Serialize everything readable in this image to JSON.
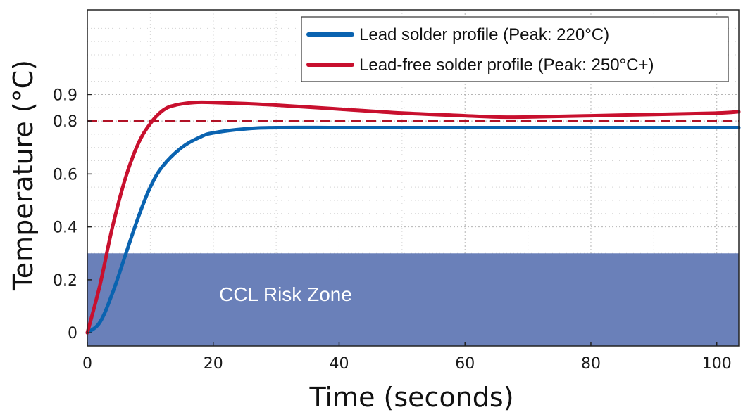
{
  "chart_data": {
    "type": "line",
    "xlabel": "Time (seconds)",
    "ylabel": "Temperature (°C)",
    "xlim": [
      0,
      103.5
    ],
    "ylim": [
      -0.05,
      1.22
    ],
    "xticks": [
      0,
      20,
      40,
      60,
      80,
      100
    ],
    "yticks": [
      0,
      0.2,
      0.4,
      0.6,
      0.8,
      0.9
    ],
    "ytick_labels": [
      "0",
      "0.2",
      "0.4",
      "0.6",
      "0.8",
      "0.9"
    ],
    "grid": true,
    "legend_position": "top-right",
    "series": [
      {
        "name": "Lead solder profile (Peak: 220°C)",
        "color": "#0a63b0",
        "x": [
          0,
          2,
          4,
          6,
          8,
          10,
          12,
          15,
          18,
          20,
          25,
          30,
          40,
          50,
          60,
          70,
          80,
          90,
          100,
          103.5
        ],
        "y": [
          0,
          0.04,
          0.15,
          0.29,
          0.43,
          0.55,
          0.63,
          0.7,
          0.74,
          0.755,
          0.77,
          0.775,
          0.775,
          0.775,
          0.775,
          0.775,
          0.775,
          0.775,
          0.775,
          0.775
        ]
      },
      {
        "name": "Lead-free solder profile (Peak: 250°C+)",
        "color": "#c8102e",
        "x": [
          0,
          2,
          4,
          6,
          8,
          10,
          12,
          14,
          17,
          20,
          25,
          30,
          40,
          50,
          60,
          65,
          70,
          80,
          90,
          100,
          103.5
        ],
        "y": [
          0,
          0.18,
          0.4,
          0.58,
          0.71,
          0.79,
          0.84,
          0.86,
          0.87,
          0.87,
          0.866,
          0.86,
          0.845,
          0.83,
          0.82,
          0.815,
          0.815,
          0.82,
          0.825,
          0.83,
          0.835
        ]
      }
    ],
    "reference_line": {
      "y": 0.8,
      "color": "#b11226",
      "style": "dashed"
    },
    "shaded_region": {
      "label": "CCL Risk Zone",
      "y_from": -0.05,
      "y_to": 0.3,
      "color": "#6a80b9"
    }
  }
}
